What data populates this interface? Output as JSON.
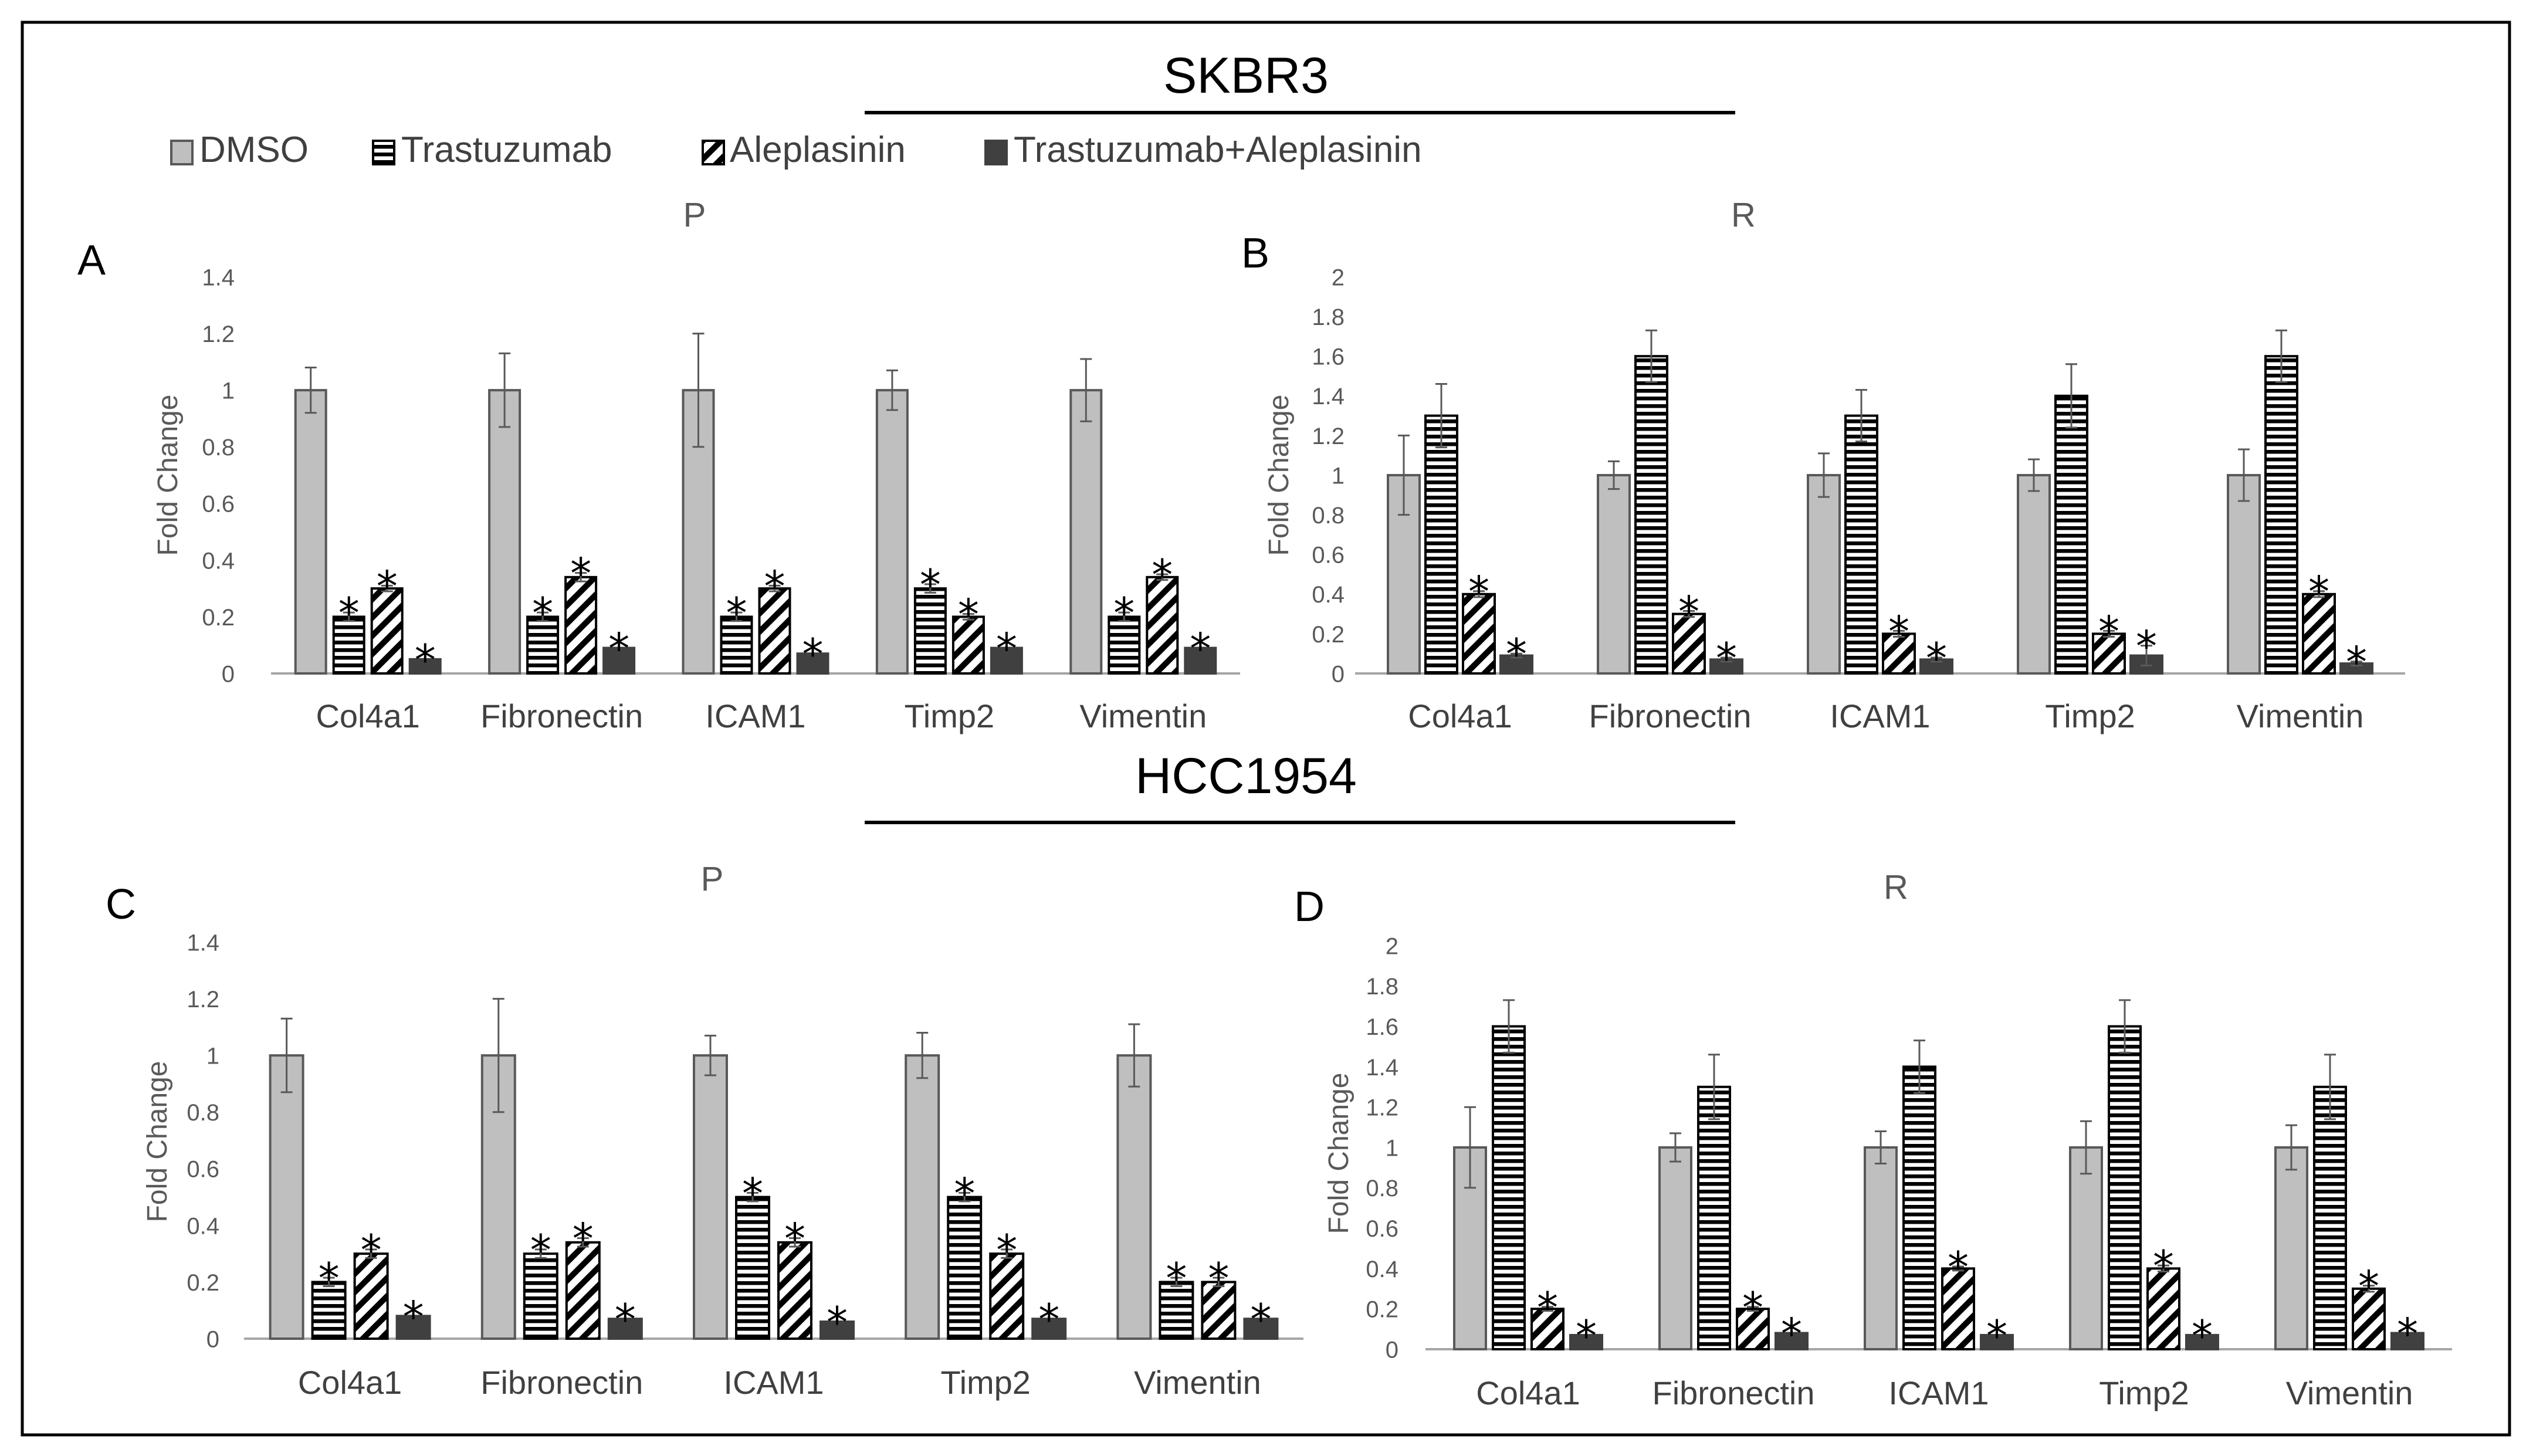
{
  "sections": [
    {
      "title": "SKBR3"
    },
    {
      "title": "HCC1954"
    }
  ],
  "legend": [
    {
      "label": "DMSO",
      "pattern": "solid-light"
    },
    {
      "label": "Trastuzumab",
      "pattern": "horizontal-stripes"
    },
    {
      "label": "Aleplasinin",
      "pattern": "diagonal-stripes"
    },
    {
      "label": "Trastuzumab+Aleplasinin",
      "pattern": "solid-dark"
    }
  ],
  "colors": {
    "dmso_fill": "#bfbfbf",
    "bar_outline": "#595959",
    "dark_fill": "#404040",
    "stripe": "#000000",
    "axis": "#a6a6a6"
  },
  "chart_data": [
    {
      "panel": "A",
      "cell_line": "SKBR3",
      "type": "bar",
      "title": "P",
      "ylabel": "Fold Change",
      "ylim": [
        0,
        1.4
      ],
      "yticks": [
        "0",
        "0.2",
        "0.4",
        "0.6",
        "0.8",
        "1",
        "1.2",
        "1.4"
      ],
      "categories": [
        "Col4a1",
        "Fibronectin",
        "ICAM1",
        "Timp2",
        "Vimentin"
      ],
      "series": [
        {
          "name": "DMSO",
          "values": [
            1,
            1,
            1,
            1,
            1
          ],
          "errors": [
            0.08,
            0.13,
            0.2,
            0.07,
            0.11
          ],
          "significant": [
            false,
            false,
            false,
            false,
            false
          ]
        },
        {
          "name": "Trastuzumab",
          "values": [
            0.2,
            0.2,
            0.2,
            0.3,
            0.2
          ],
          "errors": [
            0.015,
            0.015,
            0.015,
            0.015,
            0.015
          ],
          "significant": [
            true,
            true,
            true,
            true,
            true
          ]
        },
        {
          "name": "Aleplasinin",
          "values": [
            0.3,
            0.34,
            0.3,
            0.2,
            0.34
          ],
          "errors": [
            0.01,
            0.015,
            0.01,
            0.01,
            0.01
          ],
          "significant": [
            true,
            true,
            true,
            true,
            true
          ]
        },
        {
          "name": "Trastuzumab+Aleplasinin",
          "values": [
            0.05,
            0.09,
            0.07,
            0.09,
            0.09
          ],
          "errors": [
            0,
            0,
            0,
            0,
            0
          ],
          "significant": [
            true,
            true,
            true,
            true,
            true
          ]
        }
      ],
      "significance_marker": "*"
    },
    {
      "panel": "B",
      "cell_line": "SKBR3",
      "type": "bar",
      "title": "R",
      "ylabel": "Fold Change",
      "ylim": [
        0,
        2
      ],
      "yticks": [
        "0",
        "0.2",
        "0.4",
        "0.6",
        "0.8",
        "1",
        "1.2",
        "1.4",
        "1.6",
        "1.8",
        "2"
      ],
      "categories": [
        "Col4a1",
        "Fibronectin",
        "ICAM1",
        "Timp2",
        "Vimentin"
      ],
      "series": [
        {
          "name": "DMSO",
          "values": [
            1,
            1,
            1,
            1,
            1
          ],
          "errors": [
            0.2,
            0.07,
            0.11,
            0.08,
            0.13
          ],
          "significant": [
            false,
            false,
            false,
            false,
            false
          ]
        },
        {
          "name": "Trastuzumab",
          "values": [
            1.3,
            1.6,
            1.3,
            1.4,
            1.6
          ],
          "errors": [
            0.16,
            0.13,
            0.13,
            0.16,
            0.13
          ],
          "significant": [
            false,
            false,
            false,
            false,
            false
          ]
        },
        {
          "name": "Aleplasinin",
          "values": [
            0.4,
            0.3,
            0.2,
            0.2,
            0.4
          ],
          "errors": [
            0.015,
            0.015,
            0.015,
            0.015,
            0.015
          ],
          "significant": [
            true,
            true,
            true,
            true,
            true
          ]
        },
        {
          "name": "Trastuzumab+Aleplasinin",
          "values": [
            0.09,
            0.07,
            0.07,
            0.09,
            0.05
          ],
          "errors": [
            0.01,
            0.01,
            0.01,
            0.05,
            0.01
          ],
          "significant": [
            true,
            true,
            true,
            true,
            true
          ]
        }
      ],
      "significance_marker": "*"
    },
    {
      "panel": "C",
      "cell_line": "HCC1954",
      "type": "bar",
      "title": "P",
      "ylabel": "Fold Change",
      "ylim": [
        0,
        1.4
      ],
      "yticks": [
        "0",
        "0.2",
        "0.4",
        "0.6",
        "0.8",
        "1",
        "1.2",
        "1.4"
      ],
      "categories": [
        "Col4a1",
        "Fibronectin",
        "ICAM1",
        "Timp2",
        "Vimentin"
      ],
      "series": [
        {
          "name": "DMSO",
          "values": [
            1,
            1,
            1,
            1,
            1
          ],
          "errors": [
            0.13,
            0.2,
            0.07,
            0.08,
            0.11
          ],
          "significant": [
            false,
            false,
            false,
            false,
            false
          ]
        },
        {
          "name": "Trastuzumab",
          "values": [
            0.2,
            0.3,
            0.5,
            0.5,
            0.2
          ],
          "errors": [
            0.015,
            0.015,
            0.015,
            0.015,
            0.015
          ],
          "significant": [
            true,
            true,
            true,
            true,
            true
          ]
        },
        {
          "name": "Aleplasinin",
          "values": [
            0.3,
            0.34,
            0.34,
            0.3,
            0.2
          ],
          "errors": [
            0.015,
            0.015,
            0.015,
            0.015,
            0.015
          ],
          "significant": [
            true,
            true,
            true,
            true,
            true
          ]
        },
        {
          "name": "Trastuzumab+Aleplasinin",
          "values": [
            0.08,
            0.07,
            0.06,
            0.07,
            0.07
          ],
          "errors": [
            0,
            0,
            0,
            0,
            0
          ],
          "significant": [
            true,
            true,
            true,
            true,
            true
          ]
        }
      ],
      "significance_marker": "*"
    },
    {
      "panel": "D",
      "cell_line": "HCC1954",
      "type": "bar",
      "title": "R",
      "ylabel": "Fold Change",
      "ylim": [
        0,
        2
      ],
      "yticks": [
        "0",
        "0.2",
        "0.4",
        "0.6",
        "0.8",
        "1",
        "1.2",
        "1.4",
        "1.6",
        "1.8",
        "2"
      ],
      "categories": [
        "Col4a1",
        "Fibronectin",
        "ICAM1",
        "Timp2",
        "Vimentin"
      ],
      "series": [
        {
          "name": "DMSO",
          "values": [
            1,
            1,
            1,
            1,
            1
          ],
          "errors": [
            0.2,
            0.07,
            0.08,
            0.13,
            0.11
          ],
          "significant": [
            false,
            false,
            false,
            false,
            false
          ]
        },
        {
          "name": "Trastuzumab",
          "values": [
            1.6,
            1.3,
            1.4,
            1.6,
            1.3
          ],
          "errors": [
            0.13,
            0.16,
            0.13,
            0.13,
            0.16
          ],
          "significant": [
            false,
            false,
            false,
            false,
            false
          ]
        },
        {
          "name": "Aleplasinin",
          "values": [
            0.2,
            0.2,
            0.4,
            0.4,
            0.3
          ],
          "errors": [
            0.01,
            0.01,
            0.01,
            0.015,
            0.015
          ],
          "significant": [
            true,
            true,
            true,
            true,
            true
          ]
        },
        {
          "name": "Trastuzumab+Aleplasinin",
          "values": [
            0.07,
            0.08,
            0.07,
            0.07,
            0.08
          ],
          "errors": [
            0,
            0,
            0,
            0,
            0
          ],
          "significant": [
            true,
            true,
            true,
            true,
            true
          ]
        }
      ],
      "significance_marker": "*"
    }
  ]
}
